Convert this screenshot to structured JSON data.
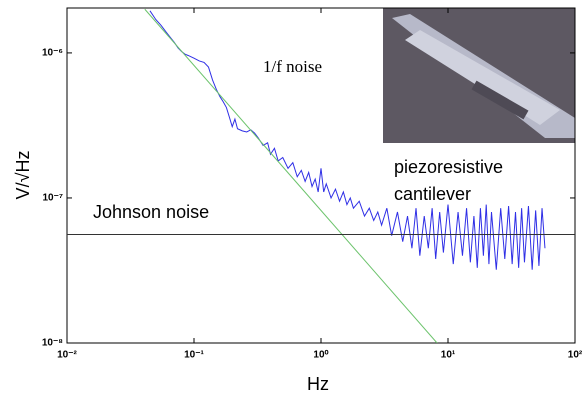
{
  "chart_data": {
    "type": "line",
    "xlabel": "Hz",
    "ylabel": "V/√Hz",
    "xscale": "log",
    "yscale": "log",
    "xlim": [
      0.01,
      100
    ],
    "ylim": [
      1e-08,
      2.04e-06
    ],
    "xticks": [
      {
        "value": 0.01,
        "label": "10⁻²"
      },
      {
        "value": 0.1,
        "label": "10⁻¹"
      },
      {
        "value": 1,
        "label": "10⁰"
      },
      {
        "value": 10,
        "label": "10¹"
      },
      {
        "value": 100,
        "label": "10²"
      }
    ],
    "yticks": [
      {
        "value": 1e-08,
        "label": "10⁻⁸"
      },
      {
        "value": 1e-07,
        "label": "10⁻⁷"
      },
      {
        "value": 1e-06,
        "label": "10⁻⁶"
      }
    ],
    "annotations": [
      "1/f noise",
      "piezoresistive",
      "cantilever",
      "Johnson noise"
    ],
    "series": [
      {
        "color": "#2f2fe6",
        "x": [
          0.045,
          0.05,
          0.055,
          0.06,
          0.065,
          0.07,
          0.075,
          0.08,
          0.085,
          0.09,
          0.1,
          0.11,
          0.12,
          0.13,
          0.14,
          0.15,
          0.16,
          0.17,
          0.18,
          0.19,
          0.2,
          0.21,
          0.22,
          0.24,
          0.26,
          0.28,
          0.3,
          0.32,
          0.35,
          0.38,
          0.4,
          0.43,
          0.46,
          0.5,
          0.55,
          0.6,
          0.65,
          0.7,
          0.75,
          0.8,
          0.85,
          0.9,
          0.95,
          1.0,
          1.05,
          1.1,
          1.2,
          1.3,
          1.4,
          1.5,
          1.6,
          1.7,
          1.8,
          2.0,
          2.2,
          2.4,
          2.6,
          2.8,
          3.0,
          3.3,
          3.6,
          4.0,
          4.4,
          4.8,
          5.2,
          5.6,
          6,
          6.5,
          7,
          7.5,
          8,
          8.6,
          9.2,
          10,
          11,
          12,
          13,
          14,
          15,
          16,
          17,
          18,
          19,
          20,
          21,
          22,
          24,
          26,
          28,
          30,
          32,
          34,
          36,
          38,
          40,
          43,
          46,
          49,
          52,
          55,
          58
        ],
        "values": [
          1.95e-06,
          1.7e-06,
          1.55e-06,
          1.4e-06,
          1.28e-06,
          1.18e-06,
          1.08e-06,
          1.02e-06,
          9.8e-07,
          9.6e-07,
          9.2e-07,
          8.8e-07,
          8.6e-07,
          8e-07,
          6.5e-07,
          5.6e-07,
          5e-07,
          4.6e-07,
          4.2e-07,
          3.6e-07,
          3.1e-07,
          3.5e-07,
          3e-07,
          2.9e-07,
          2.85e-07,
          2.95e-07,
          2.8e-07,
          2.6e-07,
          2.3e-07,
          2.4e-07,
          2e-07,
          2.2e-07,
          1.8e-07,
          1.9e-07,
          1.6e-07,
          1.75e-07,
          1.4e-07,
          1.55e-07,
          1.3e-07,
          1.5e-07,
          1.2e-07,
          1.35e-07,
          1.1e-07,
          1.6e-07,
          1.1e-07,
          1.25e-07,
          1e-07,
          1.15e-07,
          9.5e-08,
          1.1e-07,
          9e-08,
          1e-07,
          8.5e-08,
          9.5e-08,
          7.5e-08,
          8.5e-08,
          7e-08,
          8e-08,
          6.5e-08,
          8.5e-08,
          5.5e-08,
          8e-08,
          5e-08,
          7.5e-08,
          4.5e-08,
          8.5e-08,
          4e-08,
          7.5e-08,
          4.5e-08,
          8.5e-08,
          3.8e-08,
          8e-08,
          4.2e-08,
          9e-08,
          3.5e-08,
          8e-08,
          4e-08,
          8.5e-08,
          3.6e-08,
          7.5e-08,
          3.3e-08,
          8.5e-08,
          4e-08,
          9e-08,
          3.5e-08,
          8e-08,
          3.2e-08,
          8.5e-08,
          3.8e-08,
          8.8e-08,
          3.5e-08,
          8e-08,
          3.3e-08,
          8.5e-08,
          3.6e-08,
          8.8e-08,
          3.2e-08,
          8.2e-08,
          3.4e-08,
          8.5e-08,
          4.5e-08
        ]
      },
      {
        "color": "#6cc36c",
        "x": [
          0.041,
          8.2
        ],
        "values": [
          2e-06,
          1e-08
        ]
      },
      {
        "color": "#333333",
        "x": [
          0.01,
          100
        ],
        "values": [
          5.6e-08,
          5.6e-08
        ]
      }
    ]
  }
}
